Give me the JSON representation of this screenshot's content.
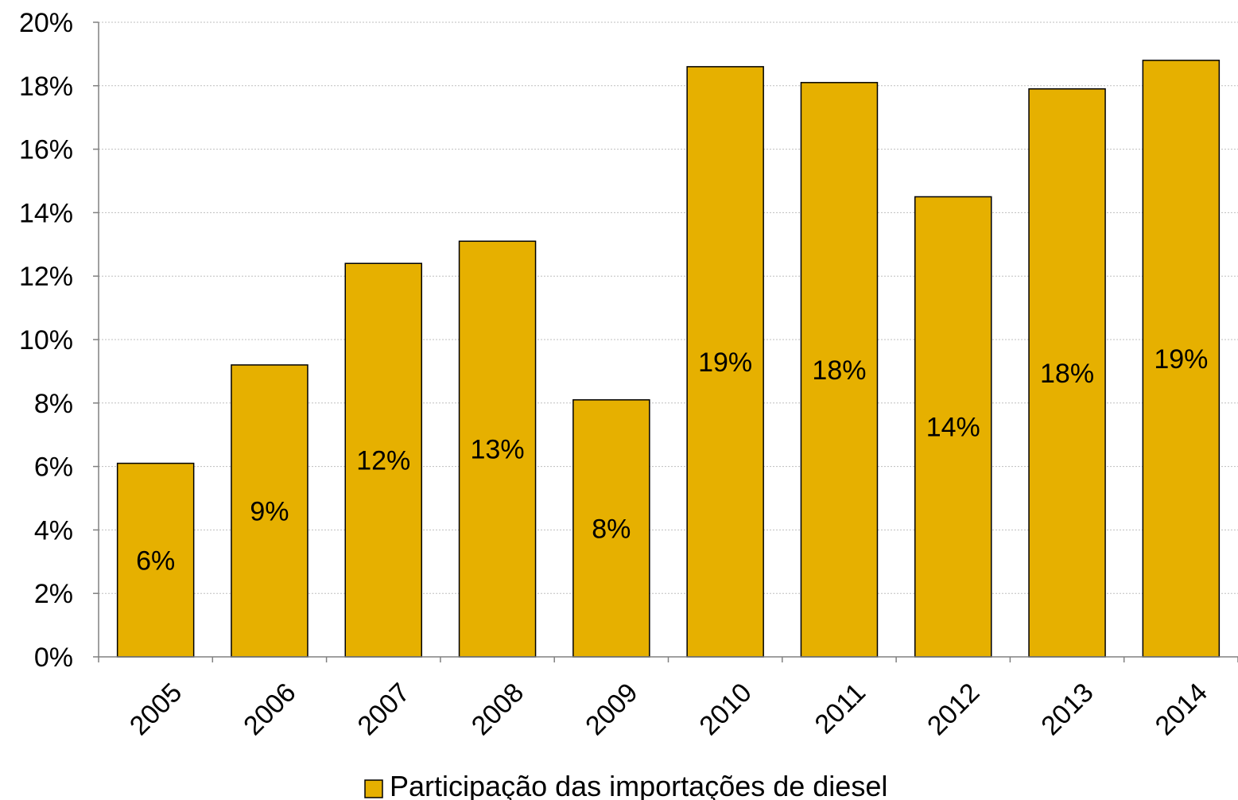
{
  "chart_data": {
    "type": "bar",
    "categories": [
      "2005",
      "2006",
      "2007",
      "2008",
      "2009",
      "2010",
      "2011",
      "2012",
      "2013",
      "2014"
    ],
    "series": [
      {
        "name": "Participação das importações de diesel",
        "values": [
          6.1,
          9.2,
          12.4,
          13.1,
          8.1,
          18.6,
          18.1,
          14.5,
          17.9,
          18.8
        ],
        "data_labels": [
          "6%",
          "9%",
          "12%",
          "13%",
          "8%",
          "19%",
          "18%",
          "14%",
          "18%",
          "19%"
        ]
      }
    ],
    "title": "",
    "xlabel": "",
    "ylabel": "",
    "ylim": [
      0,
      20
    ],
    "yticks": [
      0,
      2,
      4,
      6,
      8,
      10,
      12,
      14,
      16,
      18,
      20
    ],
    "ytick_labels": [
      "0%",
      "2%",
      "4%",
      "6%",
      "8%",
      "10%",
      "12%",
      "14%",
      "16%",
      "18%",
      "20%"
    ],
    "grid": true,
    "legend_position": "bottom",
    "colors": {
      "bar": "#E6B000",
      "bar_edge": "#000000",
      "grid": "#BFBFBF",
      "axis": "#808080"
    }
  }
}
